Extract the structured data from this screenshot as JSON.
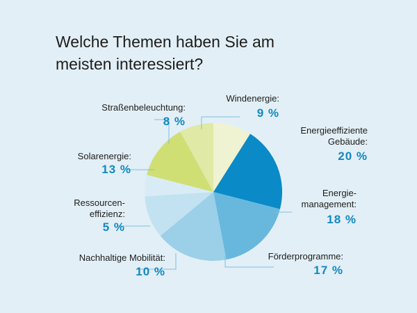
{
  "chart_data": {
    "type": "pie",
    "title_lines": [
      "Welche Themen haben Sie am",
      "meisten interessiert?"
    ],
    "start": "12 o'clock, clockwise",
    "slices": [
      {
        "name": "windenergie",
        "label_lines": [
          "Windenergie:"
        ],
        "value": 9,
        "value_text": "9 %",
        "color": "#eff3d1"
      },
      {
        "name": "energieeffiziente-gebaeude",
        "label_lines": [
          "Energieeffiziente",
          "Gebäude:"
        ],
        "value": 20,
        "value_text": "20 %",
        "color": "#0a8ac6"
      },
      {
        "name": "energiemanagement",
        "label_lines": [
          "Energie-",
          "management:"
        ],
        "value": 18,
        "value_text": "18 %",
        "color": "#68b8de"
      },
      {
        "name": "foerderprogramme",
        "label_lines": [
          "Förderprogramme:"
        ],
        "value": 17,
        "value_text": "17 %",
        "color": "#9ccfe8"
      },
      {
        "name": "nachhaltige-mobilitaet",
        "label_lines": [
          "Nachhaltige Mobilität:"
        ],
        "value": 10,
        "value_text": "10 %",
        "color": "#c2e2f1"
      },
      {
        "name": "ressourceneffizienz",
        "label_lines": [
          "Ressourcen-",
          "effizienz:"
        ],
        "value": 5,
        "value_text": "5 %",
        "color": "#d9ecf5"
      },
      {
        "name": "solarenergie",
        "label_lines": [
          "Solarenergie:"
        ],
        "value": 13,
        "value_text": "13 %",
        "color": "#cfdf73"
      },
      {
        "name": "strassenbeleuchtung",
        "label_lines": [
          "Straßenbeleuchtung:"
        ],
        "value": 8,
        "value_text": "8 %",
        "color": "#e0e9a5"
      }
    ]
  }
}
